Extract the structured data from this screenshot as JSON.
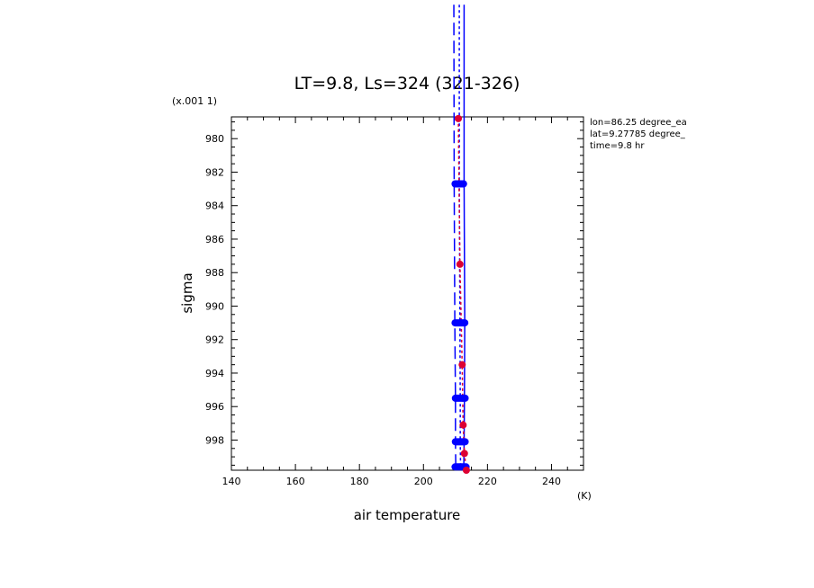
{
  "chart_data": {
    "type": "line",
    "title": "LT=9.8, Ls=324 (321-326)",
    "xlabel": "air temperature",
    "x_unit": "(K)",
    "ylabel": "sigma",
    "y_scale_note": "(x.001 1)",
    "xlim": [
      140,
      250
    ],
    "ylim": [
      999.8,
      978.7
    ],
    "x_ticks": [
      140,
      160,
      180,
      200,
      220,
      240
    ],
    "y_ticks": [
      980,
      982,
      984,
      986,
      988,
      990,
      992,
      994,
      996,
      998
    ],
    "info": [
      "lon=86.25 degree_ea",
      "lat=9.27785 degree_",
      "time=9.8 hr"
    ],
    "colors": {
      "blue": "#0000ff",
      "red": "#dd0033",
      "axis": "#000000"
    },
    "series": [
      {
        "style": "solid",
        "color": "#0000ff",
        "points": [
          [
            212.7,
            972.0
          ],
          [
            212.7,
            982.7
          ],
          [
            212.9,
            991.0
          ],
          [
            212.8,
            995.5
          ],
          [
            212.7,
            998.1
          ],
          [
            212.6,
            999.6
          ]
        ]
      },
      {
        "style": "dashed",
        "color": "#0000ff",
        "points": [
          [
            209.5,
            972.0
          ],
          [
            209.6,
            982.7
          ],
          [
            209.8,
            991.0
          ],
          [
            210.0,
            995.5
          ],
          [
            210.0,
            998.1
          ],
          [
            210.1,
            999.6
          ]
        ]
      },
      {
        "style": "dotted",
        "color": "#0000ff",
        "points": [
          [
            211.2,
            972.0
          ],
          [
            211.2,
            982.7
          ],
          [
            211.4,
            991.0
          ],
          [
            211.5,
            995.5
          ],
          [
            211.5,
            998.1
          ],
          [
            211.6,
            999.6
          ]
        ]
      },
      {
        "style": "dotted",
        "color": "#dd0033",
        "points": [
          [
            210.9,
            978.8
          ],
          [
            211.4,
            987.5
          ],
          [
            212.1,
            993.5
          ],
          [
            212.4,
            997.1
          ],
          [
            212.8,
            998.8
          ],
          [
            213.4,
            999.8
          ]
        ]
      }
    ],
    "markers": [
      {
        "color": "#0000ff",
        "x": 211.2,
        "y": 982.7,
        "spread": 1.6
      },
      {
        "color": "#0000ff",
        "x": 211.4,
        "y": 991.0,
        "spread": 1.8
      },
      {
        "color": "#0000ff",
        "x": 211.5,
        "y": 995.5,
        "spread": 1.8
      },
      {
        "color": "#0000ff",
        "x": 211.5,
        "y": 998.1,
        "spread": 1.8
      },
      {
        "color": "#0000ff",
        "x": 211.6,
        "y": 999.6,
        "spread": 2.0
      },
      {
        "color": "#dd0033",
        "x": 210.9,
        "y": 978.8,
        "spread": 0.4
      },
      {
        "color": "#dd0033",
        "x": 211.4,
        "y": 987.5,
        "spread": 0.5
      },
      {
        "color": "#dd0033",
        "x": 212.1,
        "y": 993.5,
        "spread": 0.5
      },
      {
        "color": "#dd0033",
        "x": 212.4,
        "y": 997.1,
        "spread": 0.6
      },
      {
        "color": "#dd0033",
        "x": 212.8,
        "y": 998.8,
        "spread": 0.6
      },
      {
        "color": "#dd0033",
        "x": 213.4,
        "y": 999.8,
        "spread": 0.6
      }
    ]
  }
}
